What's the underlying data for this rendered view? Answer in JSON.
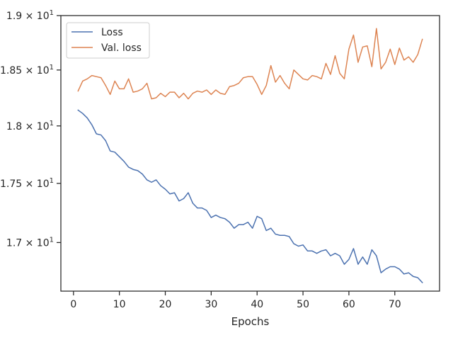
{
  "chart_data": {
    "type": "line",
    "title": "",
    "xlabel": "Epochs",
    "ylabel": "",
    "xlim": [
      -2.75,
      79.75
    ],
    "ylim": [
      16.6,
      19.0
    ],
    "xticks": [
      0,
      10,
      20,
      30,
      40,
      50,
      60,
      70
    ],
    "xtick_labels": [
      "0",
      "10",
      "20",
      "30",
      "40",
      "50",
      "60",
      "70"
    ],
    "yticks": [
      17.0,
      17.5,
      18.0,
      18.5,
      19.0
    ],
    "ytick_labels": [
      {
        "mantissa": "1.7",
        "exponent": "1"
      },
      {
        "mantissa": "1.75",
        "exponent": "1"
      },
      {
        "mantissa": "1.8",
        "exponent": "1"
      },
      {
        "mantissa": "1.85",
        "exponent": "1"
      },
      {
        "mantissa": "1.9",
        "exponent": "1"
      }
    ],
    "y_scale": "log",
    "grid": false,
    "legend_position": "top-left",
    "x": [
      1,
      2,
      3,
      4,
      5,
      6,
      7,
      8,
      9,
      10,
      11,
      12,
      13,
      14,
      15,
      16,
      17,
      18,
      19,
      20,
      21,
      22,
      23,
      24,
      25,
      26,
      27,
      28,
      29,
      30,
      31,
      32,
      33,
      34,
      35,
      36,
      37,
      38,
      39,
      40,
      41,
      42,
      43,
      44,
      45,
      46,
      47,
      48,
      49,
      50,
      51,
      52,
      53,
      54,
      55,
      56,
      57,
      58,
      59,
      60,
      61,
      62,
      63,
      64,
      65,
      66,
      67,
      68,
      69,
      70,
      71,
      72,
      73,
      74,
      75,
      76
    ],
    "series": [
      {
        "name": "Loss",
        "color": "#4c72b0",
        "values": [
          18.14,
          18.11,
          18.07,
          18.01,
          17.93,
          17.92,
          17.87,
          17.78,
          17.77,
          17.73,
          17.69,
          17.64,
          17.62,
          17.61,
          17.58,
          17.53,
          17.51,
          17.53,
          17.48,
          17.45,
          17.41,
          17.42,
          17.35,
          17.37,
          17.42,
          17.33,
          17.29,
          17.29,
          17.27,
          17.21,
          17.23,
          17.21,
          17.2,
          17.17,
          17.12,
          17.15,
          17.15,
          17.17,
          17.12,
          17.22,
          17.2,
          17.1,
          17.12,
          17.07,
          17.06,
          17.06,
          17.05,
          16.99,
          16.97,
          16.98,
          16.93,
          16.93,
          16.91,
          16.93,
          16.94,
          16.89,
          16.91,
          16.89,
          16.82,
          16.86,
          16.95,
          16.82,
          16.88,
          16.82,
          16.94,
          16.89,
          16.75,
          16.78,
          16.8,
          16.8,
          16.78,
          16.74,
          16.75,
          16.72,
          16.71,
          16.67
        ]
      },
      {
        "name": "Val. loss",
        "color": "#dd8452",
        "values": [
          18.31,
          18.4,
          18.42,
          18.45,
          18.44,
          18.43,
          18.36,
          18.28,
          18.4,
          18.33,
          18.33,
          18.42,
          18.3,
          18.31,
          18.33,
          18.38,
          18.24,
          18.25,
          18.29,
          18.26,
          18.3,
          18.3,
          18.25,
          18.29,
          18.24,
          18.29,
          18.31,
          18.3,
          18.32,
          18.28,
          18.32,
          18.29,
          18.28,
          18.35,
          18.36,
          18.38,
          18.43,
          18.44,
          18.44,
          18.37,
          18.28,
          18.36,
          18.54,
          18.39,
          18.45,
          18.38,
          18.33,
          18.5,
          18.46,
          18.42,
          18.41,
          18.45,
          18.44,
          18.42,
          18.56,
          18.46,
          18.63,
          18.47,
          18.42,
          18.69,
          18.82,
          18.57,
          18.71,
          18.72,
          18.53,
          18.88,
          18.51,
          18.57,
          18.69,
          18.55,
          18.7,
          18.59,
          18.62,
          18.57,
          18.64,
          18.78
        ]
      }
    ]
  }
}
